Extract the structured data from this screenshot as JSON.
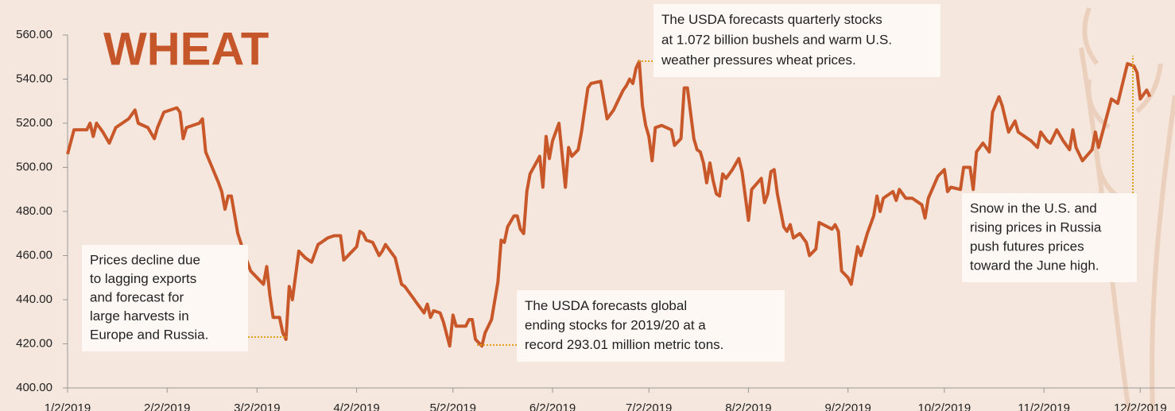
{
  "chart_data": {
    "type": "line",
    "title": "WHEAT",
    "x": [
      "1/2/2019",
      "1/4/2019",
      "1/8/2019",
      "1/9/2019",
      "1/10/2019",
      "1/11/2019",
      "1/13/2019",
      "1/15/2019",
      "1/17/2019",
      "1/19/2019",
      "1/21/2019",
      "1/23/2019",
      "1/24/2019",
      "1/27/2019",
      "1/29/2019",
      "1/30/2019",
      "2/1/2019",
      "2/3/2019",
      "2/5/2019",
      "2/6/2019",
      "2/7/2019",
      "2/8/2019",
      "2/12/2019",
      "2/13/2019",
      "2/14/2019",
      "2/18/2019",
      "2/19/2019",
      "2/20/2019",
      "2/21/2019",
      "2/22/2019",
      "2/24/2019",
      "2/26/2019",
      "2/28/2019",
      "3/2/2019",
      "3/4/2019",
      "3/5/2019",
      "3/6/2019",
      "3/7/2019",
      "3/9/2019",
      "3/10/2019",
      "3/11/2019",
      "3/12/2019",
      "3/13/2019",
      "3/15/2019",
      "3/17/2019",
      "3/19/2019",
      "3/21/2019",
      "3/22/2019",
      "3/24/2019",
      "3/26/2019",
      "3/28/2019",
      "3/29/2019",
      "3/31/2019",
      "4/2/2019",
      "4/3/2019",
      "4/4/2019",
      "4/5/2019",
      "4/7/2019",
      "4/9/2019",
      "4/10/2019",
      "4/11/2019",
      "4/14/2019",
      "4/16/2019",
      "4/17/2019",
      "4/20/2019",
      "4/21/2019",
      "4/23/2019",
      "4/24/2019",
      "4/25/2019",
      "4/26/2019",
      "4/28/2019",
      "4/29/2019",
      "5/1/2019",
      "5/2/2019",
      "5/3/2019",
      "5/6/2019",
      "5/7/2019",
      "5/8/2019",
      "5/9/2019",
      "5/11/2019",
      "5/12/2019",
      "5/14/2019",
      "5/16/2019",
      "5/17/2019",
      "5/18/2019",
      "5/19/2019",
      "5/21/2019",
      "5/22/2019",
      "5/23/2019",
      "5/24/2019",
      "5/25/2019",
      "5/26/2019",
      "5/29/2019",
      "5/30/2019",
      "5/31/2019",
      "6/1/2019",
      "6/2/2019",
      "6/4/2019",
      "6/6/2019",
      "6/7/2019",
      "6/8/2019",
      "6/10/2019",
      "6/11/2019",
      "6/12/2019",
      "6/13/2019",
      "6/14/2019",
      "6/17/2019",
      "6/19/2019",
      "6/21/2019",
      "6/22/2019",
      "6/24/2019",
      "6/25/2019",
      "6/26/2019",
      "6/27/2019",
      "6/28/2019",
      "6/29/2019",
      "6/30/2019",
      "7/1/2019",
      "7/2/2019",
      "7/3/2019",
      "7/4/2019",
      "7/6/2019",
      "7/9/2019",
      "7/10/2019",
      "7/12/2019",
      "7/13/2019",
      "7/14/2019",
      "7/16/2019",
      "7/17/2019",
      "7/18/2019",
      "7/19/2019",
      "7/20/2019",
      "7/21/2019",
      "7/22/2019",
      "7/23/2019",
      "7/24/2019",
      "7/25/2019",
      "7/26/2019",
      "7/28/2019",
      "7/30/2019",
      "7/31/2019",
      "8/2/2019",
      "8/3/2019",
      "8/6/2019",
      "8/7/2019",
      "8/8/2019",
      "8/9/2019",
      "8/10/2019",
      "8/11/2019",
      "8/13/2019",
      "8/14/2019",
      "8/15/2019",
      "8/16/2019",
      "8/18/2019",
      "8/20/2019",
      "8/21/2019",
      "8/23/2019",
      "8/24/2019",
      "8/28/2019",
      "8/29/2019",
      "8/30/2019",
      "8/31/2019",
      "9/2/2019",
      "9/3/2019",
      "9/5/2019",
      "9/6/2019",
      "9/8/2019",
      "9/10/2019",
      "9/11/2019",
      "9/12/2019",
      "9/13/2019",
      "9/16/2019",
      "9/17/2019",
      "9/18/2019",
      "9/20/2019",
      "9/22/2019",
      "9/24/2019",
      "9/25/2019",
      "9/26/2019",
      "9/27/2019",
      "9/30/2019",
      "10/2/2019",
      "10/3/2019",
      "10/4/2019",
      "10/7/2019",
      "10/8/2019",
      "10/10/2019",
      "10/11/2019",
      "10/12/2019",
      "10/14/2019",
      "10/16/2019",
      "10/17/2019",
      "10/19/2019",
      "10/20/2019",
      "10/21/2019",
      "10/22/2019",
      "10/24/2019",
      "10/25/2019",
      "10/29/2019",
      "10/31/2019",
      "11/1/2019",
      "11/3/2019",
      "11/4/2019",
      "11/6/2019",
      "11/8/2019",
      "11/10/2019",
      "11/11/2019",
      "11/12/2019",
      "11/14/2019",
      "11/17/2019",
      "11/18/2019",
      "11/19/2019",
      "11/21/2019",
      "11/23/2019",
      "11/25/2019",
      "11/27/2019",
      "11/28/2019",
      "11/30/2019",
      "12/1/2019",
      "12/2/2019",
      "12/4/2019",
      "12/5/2019"
    ],
    "series": [
      {
        "color": "#c8582a",
        "values": [
          506,
          517,
          517,
          520,
          514,
          520,
          516,
          511,
          518,
          520,
          522,
          526,
          520,
          518,
          513,
          518,
          525,
          526,
          527,
          525,
          513,
          518,
          520,
          522,
          507,
          493,
          489,
          481,
          487,
          487,
          470,
          461,
          453,
          450,
          447,
          455,
          442,
          432,
          432,
          425,
          422,
          446,
          440,
          462,
          459,
          457,
          465,
          466,
          468,
          469,
          469,
          458,
          461,
          464,
          471,
          470,
          467,
          466,
          460,
          462,
          465,
          459,
          447,
          446,
          440,
          438,
          434,
          438,
          432,
          435,
          434,
          430,
          419,
          433,
          428,
          428,
          431,
          431,
          422,
          419,
          425,
          431,
          448,
          467,
          466,
          473,
          478,
          478,
          472,
          470,
          489,
          497,
          505,
          491,
          514,
          504,
          512,
          520,
          491,
          509,
          505,
          508,
          516,
          526,
          536,
          538,
          539,
          522,
          526,
          529,
          535,
          537,
          540,
          538,
          545,
          548,
          528,
          519,
          514,
          503,
          518,
          519,
          517,
          510,
          513,
          536,
          536,
          513,
          508,
          507,
          502,
          493,
          502,
          494,
          488,
          487,
          497,
          495,
          499,
          504,
          498,
          476,
          490,
          495,
          484,
          488,
          498,
          499,
          488,
          473,
          471,
          474,
          468,
          470,
          466,
          460,
          463,
          475,
          472,
          474,
          471,
          453,
          450,
          447,
          464,
          460,
          470,
          478,
          487,
          480,
          486,
          489,
          485,
          490,
          486,
          486,
          484,
          483,
          477,
          486,
          496,
          499,
          489,
          491,
          490,
          500,
          500,
          490,
          507,
          511,
          507,
          525,
          532,
          528,
          522,
          516,
          521,
          516,
          512,
          509,
          516,
          512,
          511,
          517,
          512,
          508,
          517,
          509,
          503,
          508,
          516,
          509,
          520,
          531,
          529,
          541,
          547,
          546,
          543,
          531,
          535,
          532
        ]
      }
    ],
    "xlim": [
      "1/2/2019",
      "12/9/2019"
    ],
    "xticks": [
      "1/2/2019",
      "2/2/2019",
      "3/2/2019",
      "4/2/2019",
      "5/2/2019",
      "6/2/2019",
      "7/2/2019",
      "8/2/2019",
      "9/2/2019",
      "10/2/2019",
      "11/2/2019",
      "12/2/2019"
    ],
    "ylim": [
      400,
      560
    ],
    "yticks": [
      {
        "value": 400,
        "label": "400.00"
      },
      {
        "value": 420,
        "label": "420.00"
      },
      {
        "value": 440,
        "label": "440.00"
      },
      {
        "value": 460,
        "label": "460.00"
      },
      {
        "value": 480,
        "label": "480.00"
      },
      {
        "value": 500,
        "label": "500.00"
      },
      {
        "value": 520,
        "label": "520.00"
      },
      {
        "value": 540,
        "label": "540.00"
      },
      {
        "value": 560,
        "label": "560.00"
      }
    ],
    "annotations": [
      {
        "lines": [
          "Prices decline due",
          "to lagging exports",
          "and forecast for",
          "large harvests in",
          "Europe and Russia."
        ]
      },
      {
        "lines": [
          "The USDA forecasts global",
          "ending stocks for 2019/20 at a",
          "record 293.01 million metric tons."
        ]
      },
      {
        "lines": [
          "The USDA forecasts quarterly stocks",
          "at 1.072 billion bushels and warm U.S.",
          "weather pressures wheat prices."
        ]
      },
      {
        "lines": [
          "Snow in the U.S. and",
          "rising prices in Russia",
          "push futures prices",
          "toward the June high."
        ]
      }
    ]
  }
}
